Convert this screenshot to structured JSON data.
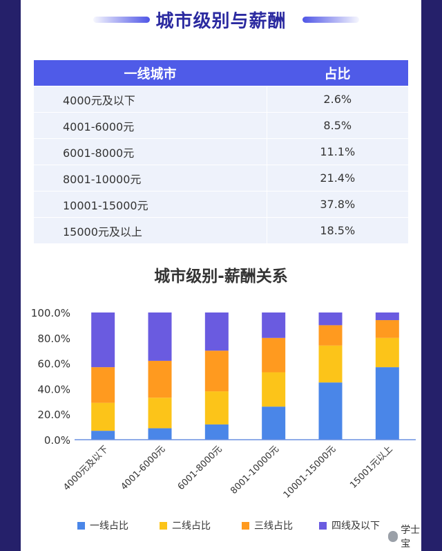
{
  "page": {
    "title": "城市级别与薪酬"
  },
  "table": {
    "headers": [
      "一线城市",
      "占比"
    ],
    "rows": [
      [
        "4000元及以下",
        "2.6%"
      ],
      [
        "4001-6000元",
        "8.5%"
      ],
      [
        "6001-8000元",
        "11.1%"
      ],
      [
        "8001-10000元",
        "21.4%"
      ],
      [
        "10001-15000元",
        "37.8%"
      ],
      [
        "15000元及以上",
        "18.5%"
      ]
    ]
  },
  "chart_data": {
    "type": "bar",
    "stacked": true,
    "title": "城市级别-薪酬关系",
    "categories": [
      "4000元及以下",
      "4001-6000元",
      "6001-8000元",
      "8001-10000元",
      "10001-15000元",
      "15001元以上"
    ],
    "series": [
      {
        "name": "一线占比",
        "color": "#4a86e8",
        "values": [
          7,
          9,
          12,
          26,
          45,
          57
        ]
      },
      {
        "name": "二线占比",
        "color": "#fcc419",
        "values": [
          22,
          24,
          26,
          27,
          29,
          23
        ]
      },
      {
        "name": "三线占比",
        "color": "#ff9a1f",
        "values": [
          28,
          29,
          32,
          27,
          16,
          14
        ]
      },
      {
        "name": "四线及以下",
        "color": "#6a5be0",
        "values": [
          43,
          38,
          30,
          20,
          10,
          6
        ]
      }
    ],
    "ylim": [
      0,
      100
    ],
    "yticks": [
      "100.0%",
      "80.0%",
      "60.0%",
      "40.0%",
      "20.0%",
      "0.0%"
    ],
    "ytick_values": [
      100,
      80,
      60,
      40,
      20,
      0
    ],
    "xlabel": "",
    "ylabel": "",
    "grid": false,
    "legend_position": "bottom"
  },
  "watermark": {
    "text": "学士宝"
  }
}
